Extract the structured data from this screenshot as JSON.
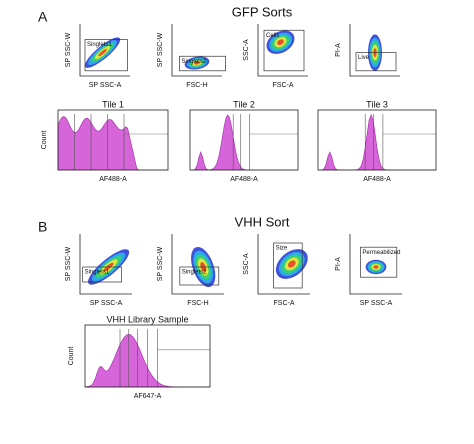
{
  "panel_a": {
    "letter": "A",
    "title": "GFP Sorts",
    "dot_plots": [
      {
        "y_label": "SP SSC-W",
        "x_label": "SP SSC-A",
        "gate": "Singlets1"
      },
      {
        "y_label": "SP SSC-W",
        "x_label": "FSC-H",
        "gate": "Singlets2"
      },
      {
        "y_label": "SSC-A",
        "x_label": "FSC-A",
        "gate": "Cells"
      },
      {
        "y_label": "PI-A",
        "gate": "Live"
      }
    ],
    "histograms": [
      {
        "title": "Tile 1",
        "y_label": "Count",
        "x_label": "AF488-A"
      },
      {
        "title": "Tile 2",
        "x_label": "AF488-A"
      },
      {
        "title": "Tile 3",
        "x_label": "AF488-A"
      }
    ]
  },
  "panel_b": {
    "letter": "B",
    "title": "VHH Sort",
    "dot_plots": [
      {
        "y_label": "SP SSC-W",
        "x_label": "SP SSC-A",
        "gate": "Singlets1"
      },
      {
        "y_label": "SP SSC-W",
        "x_label": "FSC-H",
        "gate": "Singlets2"
      },
      {
        "y_label": "SSC-A",
        "x_label": "FSC-A",
        "gate": "Size"
      },
      {
        "y_label": "PI-A",
        "x_label": "SP SSC-A",
        "gate": "Permeabilized"
      }
    ],
    "histograms": [
      {
        "title": "VHH Library Sample",
        "y_label": "Count",
        "x_label": "AF647-A"
      }
    ]
  }
}
